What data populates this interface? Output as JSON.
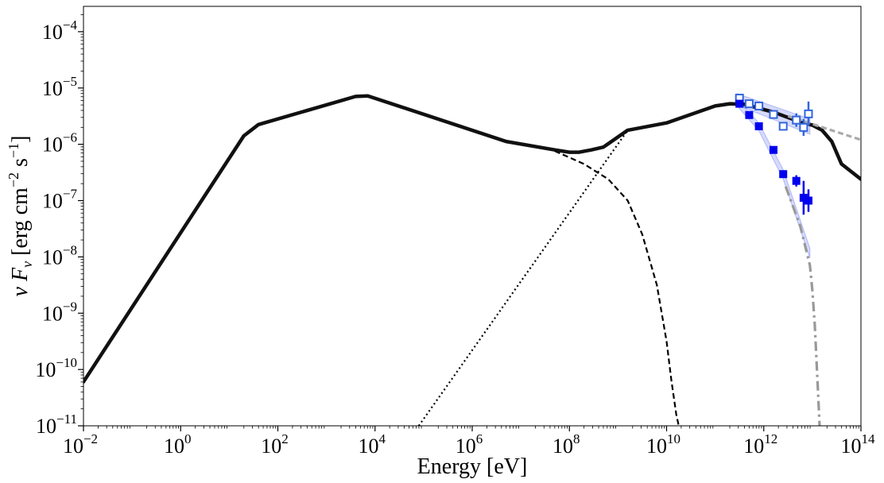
{
  "chart_data": {
    "type": "line",
    "title": "",
    "xlabel": "Energy [eV]",
    "ylabel": "ν Fν [erg cm⁻² s⁻¹]",
    "ylabel_parts": {
      "symbol": "ν F",
      "subscript": "ν",
      "units_open": " [erg cm",
      "exp1": "−2",
      "units_mid": " s",
      "exp2": "−1",
      "units_close": "]"
    },
    "x_scale": "log",
    "y_scale": "log",
    "xlim_log10": [
      -2,
      14
    ],
    "ylim_log10": [
      -11,
      -3.55
    ],
    "x_ticks": [
      {
        "base": "10",
        "exp": "−2",
        "log10": -2
      },
      {
        "base": "10",
        "exp": "0",
        "log10": 0
      },
      {
        "base": "10",
        "exp": "2",
        "log10": 2
      },
      {
        "base": "10",
        "exp": "4",
        "log10": 4
      },
      {
        "base": "10",
        "exp": "6",
        "log10": 6
      },
      {
        "base": "10",
        "exp": "8",
        "log10": 8
      },
      {
        "base": "10",
        "exp": "10",
        "log10": 10
      },
      {
        "base": "10",
        "exp": "12",
        "log10": 12
      },
      {
        "base": "10",
        "exp": "14",
        "log10": 14
      }
    ],
    "y_ticks": [
      {
        "base": "10",
        "exp": "−11",
        "log10": -11
      },
      {
        "base": "10",
        "exp": "−10",
        "log10": -10
      },
      {
        "base": "10",
        "exp": "−9",
        "log10": -9
      },
      {
        "base": "10",
        "exp": "−8",
        "log10": -8
      },
      {
        "base": "10",
        "exp": "−7",
        "log10": -7
      },
      {
        "base": "10",
        "exp": "−6",
        "log10": -6
      },
      {
        "base": "10",
        "exp": "−5",
        "log10": -5
      },
      {
        "base": "10",
        "exp": "−4",
        "log10": -4
      }
    ],
    "series": [
      {
        "name": "total_sed",
        "style": "solid",
        "color": "#111111",
        "x_log10": [
          -2,
          1.3,
          1.6,
          3.6,
          3.85,
          6.7,
          7.7,
          8.0,
          8.2,
          8.45,
          8.7,
          9.2,
          10.0,
          11.0,
          11.3,
          11.6,
          12.2,
          12.8,
          13.0,
          13.2,
          13.4,
          13.6,
          14.0
        ],
        "y_log10": [
          -10.22,
          -5.85,
          -5.65,
          -5.15,
          -5.14,
          -5.95,
          -6.1,
          -6.14,
          -6.14,
          -6.1,
          -6.05,
          -5.75,
          -5.62,
          -5.32,
          -5.28,
          -5.29,
          -5.43,
          -5.62,
          -5.66,
          -5.75,
          -5.95,
          -6.35,
          -6.62
        ]
      },
      {
        "name": "synchrotron_component",
        "style": "dashed",
        "color": "#000000",
        "x_log10": [
          7.7,
          8.3,
          8.8,
          9.2,
          9.5,
          9.8,
          10.0,
          10.1,
          10.2,
          10.25
        ],
        "y_log10": [
          -6.12,
          -6.35,
          -6.62,
          -7.0,
          -7.6,
          -8.5,
          -9.5,
          -10.2,
          -10.8,
          -11.0
        ]
      },
      {
        "name": "inverse_compton_component",
        "style": "dotted",
        "color": "#000000",
        "x_log10": [
          4.9,
          9.2
        ],
        "y_log10": [
          -11.0,
          -5.75
        ]
      },
      {
        "name": "gray_dashed_powerlaw",
        "style": "dashed",
        "color": "#aaaaaa",
        "x_log10": [
          12.5,
          14.0
        ],
        "y_log10": [
          -5.5,
          -5.92
        ]
      },
      {
        "name": "gray_dashdot_absorbed",
        "style": "dashdot",
        "color": "#999999",
        "x_log10": [
          12.45,
          12.75,
          12.95,
          13.0,
          13.05,
          13.1,
          13.15
        ],
        "y_log10": [
          -6.75,
          -7.45,
          -8.15,
          -8.6,
          -9.2,
          -10.1,
          -11.0
        ]
      },
      {
        "name": "open_squares_intrinsic",
        "style": "markers-open",
        "color": "#3366dd",
        "x_log10": [
          11.5,
          11.7,
          11.9,
          12.2,
          12.4,
          12.67,
          12.82,
          12.92
        ],
        "y_log10": [
          -5.18,
          -5.28,
          -5.32,
          -5.47,
          -5.68,
          -5.57,
          -5.7,
          -5.46
        ],
        "yerr_log10": [
          0.05,
          0.05,
          0.05,
          0.06,
          0.07,
          0.12,
          0.15,
          0.22
        ]
      },
      {
        "name": "filled_squares_observed",
        "style": "markers-filled",
        "color": "#0000ee",
        "x_log10": [
          11.5,
          11.7,
          11.9,
          12.2,
          12.4,
          12.67,
          12.82,
          12.92
        ],
        "y_log10": [
          -5.28,
          -5.48,
          -5.68,
          -6.1,
          -6.53,
          -6.65,
          -6.95,
          -7.0
        ],
        "yerr_log10": [
          0.04,
          0.04,
          0.05,
          0.05,
          0.06,
          0.1,
          0.3,
          0.2
        ]
      }
    ],
    "bands": [
      {
        "name": "intrinsic_confidence_band",
        "color": "#4455ee",
        "x_log10": [
          11.45,
          12.95
        ],
        "y_upper_log10": [
          -5.1,
          -5.55
        ],
        "y_lower_log10": [
          -5.3,
          -5.82
        ]
      },
      {
        "name": "observed_confidence_band",
        "color": "#4455ee",
        "x_log10": [
          11.45,
          11.9,
          12.4,
          12.95
        ],
        "y_upper_log10": [
          -5.2,
          -5.62,
          -6.45,
          -7.85
        ],
        "y_lower_log10": [
          -5.32,
          -5.76,
          -6.62,
          -8.02
        ]
      }
    ]
  }
}
